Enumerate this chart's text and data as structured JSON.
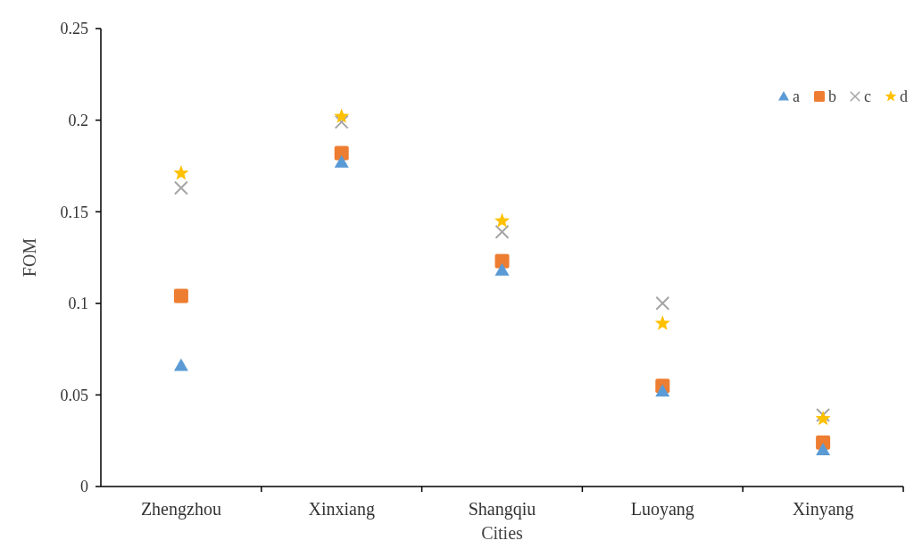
{
  "chart_data": {
    "type": "scatter",
    "xlabel": "Cities",
    "ylabel": "FOM",
    "categories": [
      "Zhengzhou",
      "Xinxiang",
      "Shangqiu",
      "Luoyang",
      "Xinyang"
    ],
    "ylim": [
      0,
      0.25
    ],
    "yticks": [
      0,
      0.05,
      0.1,
      0.15,
      0.2,
      0.25
    ],
    "grid": false,
    "legend": "top right",
    "series": [
      {
        "name": "a",
        "color": "#5b9bd5",
        "marker": "triangle",
        "values": [
          0.066,
          0.177,
          0.118,
          0.052,
          0.02
        ]
      },
      {
        "name": "b",
        "color": "#ed7d31",
        "marker": "square",
        "values": [
          0.104,
          0.182,
          0.123,
          0.055,
          0.024
        ]
      },
      {
        "name": "c",
        "color": "#a5a5a5",
        "marker": "cross",
        "values": [
          0.163,
          0.199,
          0.139,
          0.1,
          0.039
        ]
      },
      {
        "name": "d",
        "color": "#ffc000",
        "marker": "star",
        "values": [
          0.171,
          0.202,
          0.145,
          0.089,
          0.037
        ]
      }
    ]
  }
}
